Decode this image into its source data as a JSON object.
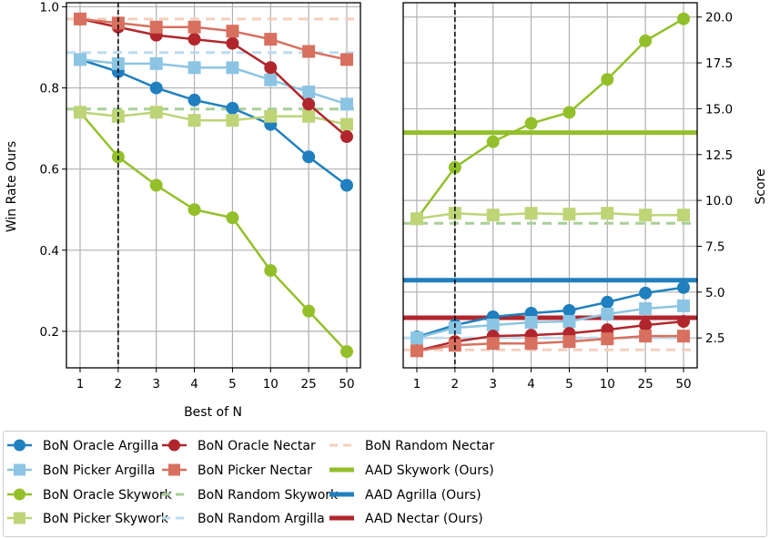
{
  "chart_data": [
    {
      "type": "line",
      "xlabel": "Best of N",
      "ylabel": "Win Rate Ours",
      "categories": [
        "1",
        "2",
        "3",
        "4",
        "5",
        "10",
        "25",
        "50"
      ],
      "ylim": [
        0.11,
        1.01
      ],
      "yticks": [
        "0.2",
        "0.4",
        "0.6",
        "0.8",
        "1.0"
      ],
      "grid": true,
      "vline_at": "2",
      "series": [
        {
          "name": "BoN Oracle Argilla",
          "color": "#1f7fbf",
          "marker": "circle",
          "values": [
            0.87,
            0.84,
            0.8,
            0.77,
            0.75,
            0.71,
            0.63,
            0.56
          ]
        },
        {
          "name": "BoN Picker Argilla",
          "color": "#8cc5e3",
          "marker": "square",
          "values": [
            0.87,
            0.86,
            0.86,
            0.85,
            0.85,
            0.82,
            0.79,
            0.76
          ]
        },
        {
          "name": "BoN Oracle Skywork",
          "color": "#93c02a",
          "marker": "circle",
          "values": [
            0.74,
            0.63,
            0.56,
            0.5,
            0.48,
            0.35,
            0.25,
            0.15
          ]
        },
        {
          "name": "BoN Picker Skywork",
          "color": "#bdd577",
          "marker": "square",
          "values": [
            0.74,
            0.73,
            0.74,
            0.72,
            0.72,
            0.73,
            0.73,
            0.71
          ]
        },
        {
          "name": "BoN Oracle Nectar",
          "color": "#b0262c",
          "marker": "circle",
          "values": [
            0.97,
            0.95,
            0.93,
            0.92,
            0.91,
            0.85,
            0.76,
            0.68
          ]
        },
        {
          "name": "BoN Picker Nectar",
          "color": "#d8705f",
          "marker": "square",
          "values": [
            0.97,
            0.96,
            0.95,
            0.95,
            0.94,
            0.92,
            0.89,
            0.87
          ]
        }
      ],
      "hlines": [
        {
          "name": "BoN Random Nectar",
          "color": "#f5cfbd",
          "style": "dashed",
          "value": 0.97
        },
        {
          "name": "BoN Random Argilla",
          "color": "#bcdcef",
          "style": "dashed",
          "value": 0.887
        },
        {
          "name": "BoN Random Skywork",
          "color": "#a8cf98",
          "style": "dashed",
          "value": 0.748
        }
      ]
    },
    {
      "type": "line",
      "xlabel": "",
      "ylabel": "Score",
      "categories": [
        "1",
        "2",
        "3",
        "4",
        "5",
        "10",
        "25",
        "50"
      ],
      "ylim": [
        0.87,
        20.78
      ],
      "yticks": [
        "2.5",
        "5.0",
        "7.5",
        "10.0",
        "12.5",
        "15.0",
        "17.5",
        "20.0"
      ],
      "grid": true,
      "vline_at": "2",
      "series": [
        {
          "name": "BoN Oracle Argilla",
          "color": "#1f7fbf",
          "marker": "circle",
          "values": [
            2.55,
            3.2,
            3.65,
            3.85,
            4.0,
            4.45,
            4.95,
            5.25
          ]
        },
        {
          "name": "BoN Picker Argilla",
          "color": "#8cc5e3",
          "marker": "square",
          "values": [
            2.5,
            3.05,
            3.2,
            3.35,
            3.4,
            3.8,
            4.1,
            4.25
          ]
        },
        {
          "name": "BoN Oracle Skywork",
          "color": "#93c02a",
          "marker": "circle",
          "values": [
            9.0,
            11.8,
            13.2,
            14.2,
            14.8,
            16.6,
            18.7,
            19.9
          ]
        },
        {
          "name": "BoN Picker Skywork",
          "color": "#bdd577",
          "marker": "square",
          "values": [
            9.0,
            9.3,
            9.2,
            9.3,
            9.25,
            9.3,
            9.2,
            9.2
          ]
        },
        {
          "name": "BoN Oracle Nectar",
          "color": "#b0262c",
          "marker": "circle",
          "values": [
            1.8,
            2.3,
            2.6,
            2.65,
            2.75,
            2.95,
            3.2,
            3.4
          ]
        },
        {
          "name": "BoN Picker Nectar",
          "color": "#d8705f",
          "marker": "square",
          "values": [
            1.8,
            2.1,
            2.2,
            2.2,
            2.3,
            2.45,
            2.6,
            2.6
          ]
        }
      ],
      "hlines": [
        {
          "name": "BoN Random Nectar",
          "color": "#f5cfbd",
          "style": "dashed",
          "value": 1.85
        },
        {
          "name": "BoN Random Argilla",
          "color": "#bcdcef",
          "style": "dashed",
          "value": 2.5
        },
        {
          "name": "BoN Random Skywork",
          "color": "#a8cf98",
          "style": "dashed",
          "value": 8.75
        },
        {
          "name": "AAD Skywork (Ours)",
          "color": "#93c02a",
          "style": "solid",
          "value": 13.7
        },
        {
          "name": "AAD Agrilla (Ours)",
          "color": "#1f7fbf",
          "style": "solid",
          "value": 5.65
        },
        {
          "name": "AAD Nectar (Ours)",
          "color": "#b0262c",
          "style": "solid",
          "value": 3.6
        }
      ]
    }
  ],
  "legend": {
    "placement": "bottom",
    "entries": [
      {
        "label": "BoN Oracle Argilla",
        "color": "#1f7fbf",
        "kind": "circle"
      },
      {
        "label": "BoN Picker Argilla",
        "color": "#8cc5e3",
        "kind": "square"
      },
      {
        "label": "BoN Oracle Skywork",
        "color": "#93c02a",
        "kind": "circle"
      },
      {
        "label": "BoN Picker Skywork",
        "color": "#bdd577",
        "kind": "square"
      },
      {
        "label": "BoN Oracle Nectar",
        "color": "#b0262c",
        "kind": "circle"
      },
      {
        "label": "BoN Picker Nectar",
        "color": "#d8705f",
        "kind": "square"
      },
      {
        "label": "BoN Random Skywork",
        "color": "#a8cf98",
        "kind": "dashed"
      },
      {
        "label": "BoN Random Argilla",
        "color": "#bcdcef",
        "kind": "dashed"
      },
      {
        "label": "BoN Random Nectar",
        "color": "#f5cfbd",
        "kind": "dashed"
      },
      {
        "label": "AAD Skywork (Ours)",
        "color": "#93c02a",
        "kind": "solid"
      },
      {
        "label": "AAD Agrilla (Ours)",
        "color": "#1f7fbf",
        "kind": "solid"
      },
      {
        "label": "AAD Nectar (Ours)",
        "color": "#b0262c",
        "kind": "solid"
      }
    ]
  }
}
